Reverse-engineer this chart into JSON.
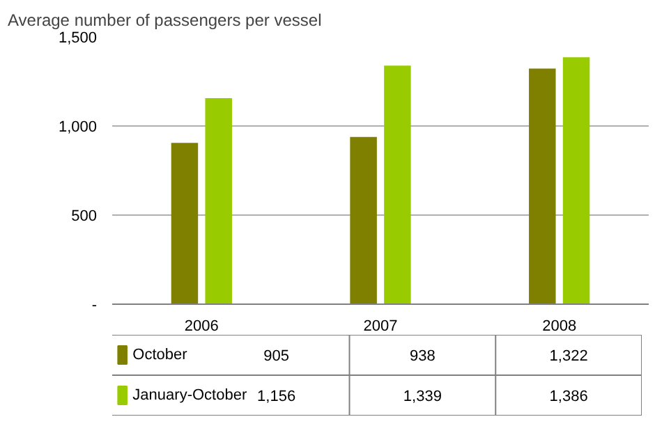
{
  "chart_data": {
    "type": "bar",
    "title": "Average number of passengers per vessel",
    "categories": [
      "2006",
      "2007",
      "2008"
    ],
    "series": [
      {
        "name": "October",
        "color": "#808000",
        "values": [
          905,
          938,
          1322
        ],
        "value_labels": [
          "905",
          "938",
          "1,322"
        ]
      },
      {
        "name": "January-October",
        "color": "#99cc00",
        "values": [
          1156,
          1339,
          1386
        ],
        "value_labels": [
          "1,156",
          "1,339",
          "1,386"
        ]
      }
    ],
    "ylim": [
      0,
      1500
    ],
    "yticks": [
      {
        "value": 0,
        "label": "-"
      },
      {
        "value": 500,
        "label": "500"
      },
      {
        "value": 1000,
        "label": "1,000"
      },
      {
        "value": 1500,
        "label": "1,500"
      }
    ],
    "grid": "y",
    "legend": "bottom"
  }
}
